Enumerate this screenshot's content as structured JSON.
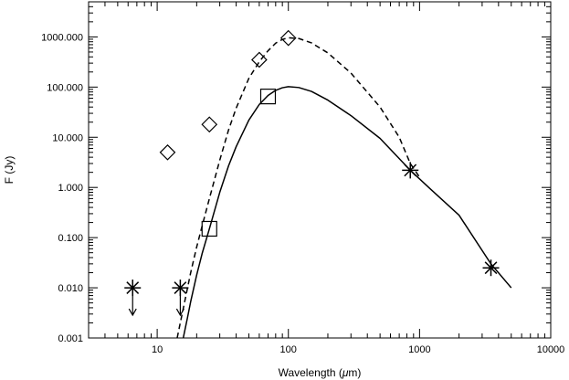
{
  "chart_data": {
    "type": "scatter",
    "title": "",
    "xlabel_pre": "Wavelength (",
    "xlabel_mu": "μ",
    "xlabel_post": "m)",
    "ylabel": "F (Jy)",
    "xscale": "log",
    "yscale": "log",
    "xlim": [
      3,
      10000
    ],
    "ylim": [
      0.001,
      5000
    ],
    "grid": false,
    "legend": "none",
    "x_ticks": [
      {
        "value": 10,
        "label": "10"
      },
      {
        "value": 100,
        "label": "100"
      },
      {
        "value": 1000,
        "label": "1000"
      },
      {
        "value": 10000,
        "label": "10000"
      }
    ],
    "y_ticks": [
      {
        "value": 0.001,
        "label": "0.001"
      },
      {
        "value": 0.01,
        "label": "0.010"
      },
      {
        "value": 0.1,
        "label": "0.100"
      },
      {
        "value": 1,
        "label": "1.000"
      },
      {
        "value": 10,
        "label": "10.000"
      },
      {
        "value": 100,
        "label": "100.000"
      },
      {
        "value": 1000,
        "label": "1000.000"
      }
    ],
    "series": [
      {
        "marker": "diamond",
        "x": [
          12,
          25,
          60,
          100
        ],
        "y": [
          5,
          18,
          350,
          950
        ]
      },
      {
        "marker": "square",
        "x": [
          25,
          70
        ],
        "y": [
          0.15,
          65
        ]
      },
      {
        "marker": "asterisk",
        "x": [
          850,
          3500
        ],
        "y": [
          2.2,
          0.025
        ]
      },
      {
        "marker": "asterisk-upper-limit",
        "x": [
          6.5,
          15
        ],
        "y": [
          0.01,
          0.01
        ]
      },
      {
        "style": "solid-line",
        "x": [
          15.8,
          17,
          18,
          20,
          22,
          25,
          30,
          35,
          40,
          50,
          60,
          70,
          80,
          90,
          100,
          120,
          150,
          200,
          300,
          500,
          850,
          1200,
          2000,
          3500,
          5000
        ],
        "y": [
          0.001,
          0.0025,
          0.0053,
          0.018,
          0.048,
          0.15,
          0.8,
          2.7,
          6.5,
          22,
          45,
          68,
          86,
          97,
          102,
          98,
          82,
          55,
          27,
          9.5,
          2.2,
          0.95,
          0.28,
          0.03,
          0.01
        ]
      },
      {
        "style": "dashed-line",
        "x": [
          14.2,
          15,
          16,
          18,
          20,
          22,
          25,
          30,
          35,
          40,
          50,
          60,
          70,
          80,
          90,
          100,
          120,
          150,
          200,
          300,
          500,
          700,
          850,
          1000
        ],
        "y": [
          0.001,
          0.002,
          0.0045,
          0.02,
          0.065,
          0.17,
          0.6,
          3.5,
          14,
          38,
          150,
          320,
          530,
          750,
          890,
          960,
          930,
          760,
          480,
          190,
          40,
          10,
          3.0,
          1.6
        ]
      }
    ]
  }
}
